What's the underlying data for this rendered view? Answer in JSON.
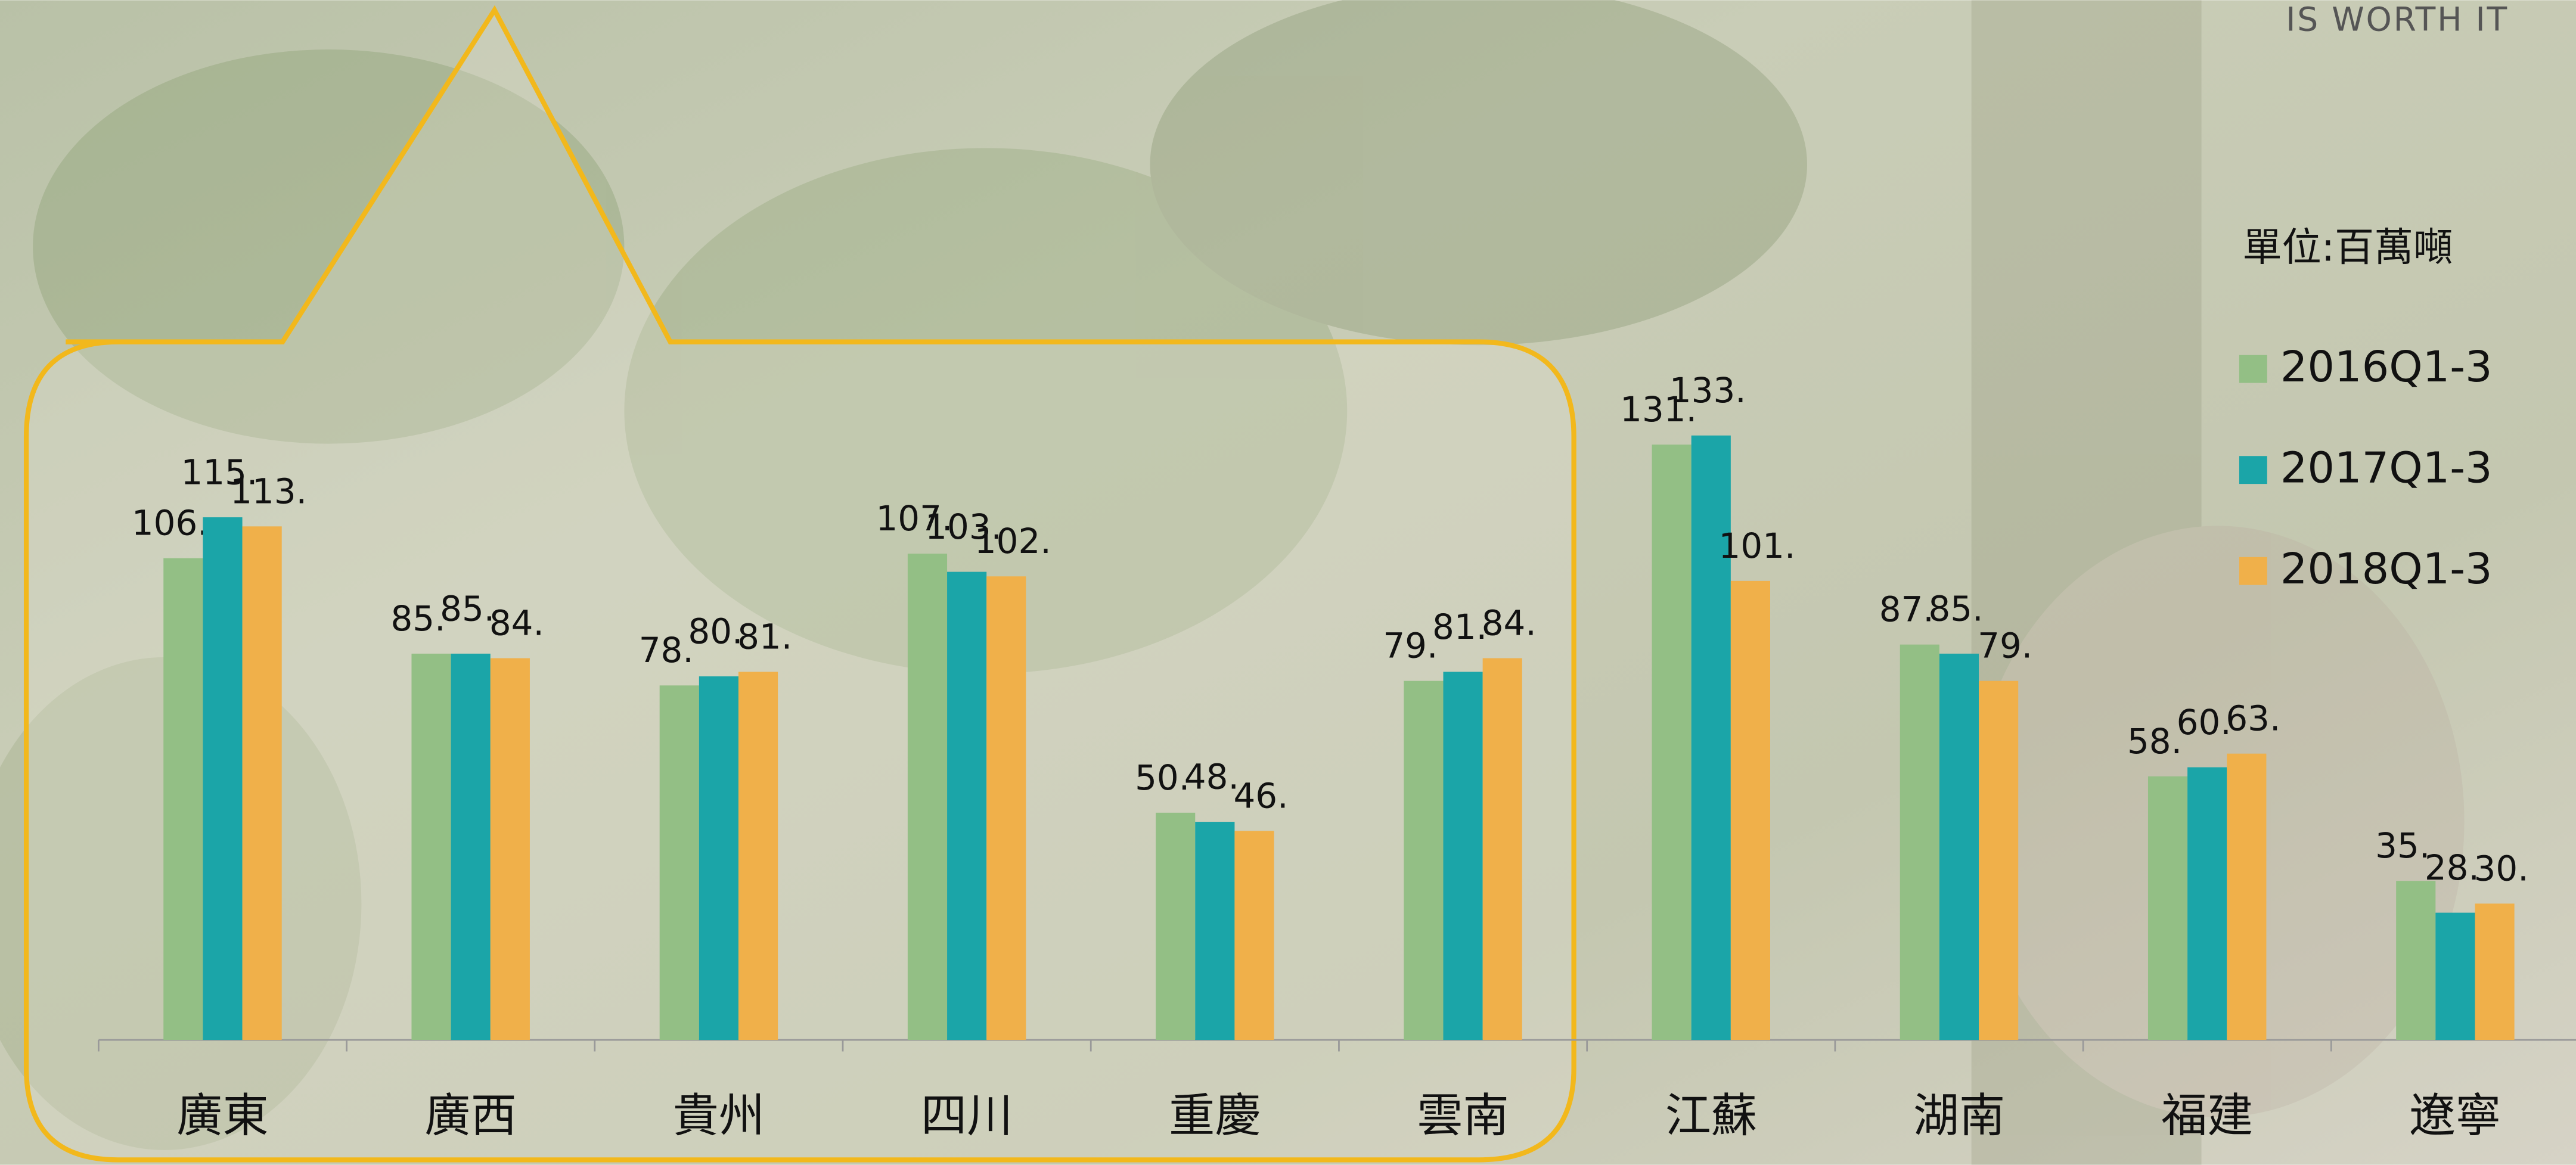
{
  "chart_data": {
    "type": "bar",
    "header": "IS WORTH IT",
    "unit_label": "單位:百萬噸",
    "categories": [
      "廣東",
      "廣西",
      "貴州",
      "四川",
      "重慶",
      "雲南",
      "江蘇",
      "湖南",
      "福建",
      "遼寧"
    ],
    "series": [
      {
        "name": "2016Q1-3",
        "color": "#93bf85",
        "values": [
          106,
          85,
          78,
          107,
          50,
          79,
          131,
          87,
          58,
          35
        ],
        "value_labels": [
          "106.",
          "85.",
          "78.",
          "107.",
          "50.",
          "79.",
          "131.",
          "87.",
          "58.",
          "35."
        ]
      },
      {
        "name": "2017Q1-3",
        "color": "#1ba5a8",
        "values": [
          115,
          85,
          80,
          103,
          48,
          81,
          133,
          85,
          60,
          28
        ],
        "value_labels": [
          "115.",
          "85.",
          "80.",
          "103.",
          "48.",
          "81.",
          "133.",
          "85.",
          "60.",
          "28."
        ]
      },
      {
        "name": "2018Q1-3",
        "color": "#f0b04a",
        "values": [
          113,
          84,
          81,
          102,
          46,
          84,
          101,
          79,
          63,
          30
        ],
        "value_labels": [
          "113.",
          "84.",
          "81.",
          "102.",
          "46.",
          "84.",
          "101.",
          "79.",
          "63.",
          "30."
        ]
      }
    ],
    "legend": "right"
  }
}
